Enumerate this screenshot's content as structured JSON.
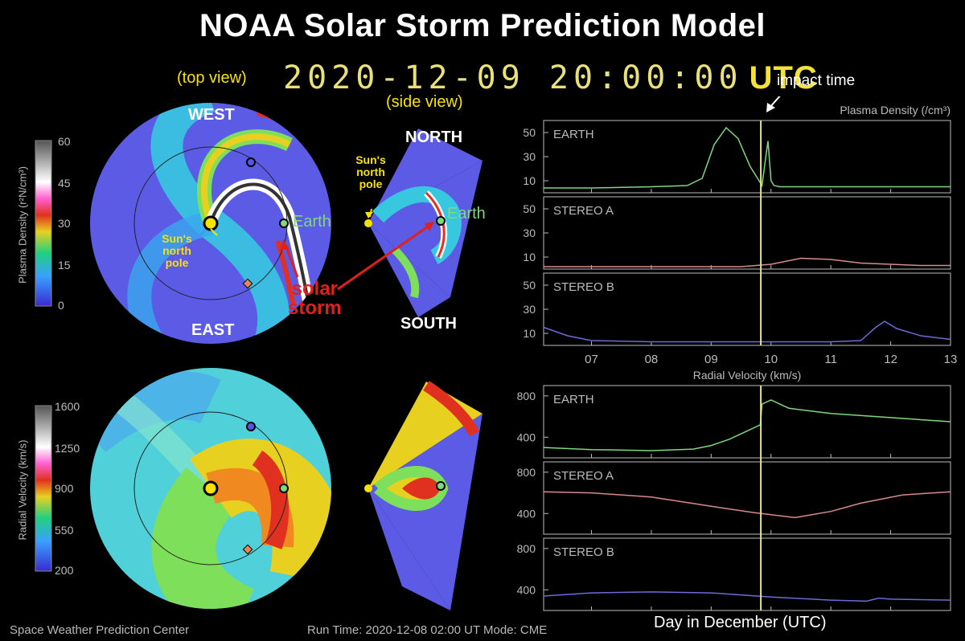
{
  "title": "NOAA Solar Storm Prediction Model",
  "datetime": "2020-12-09  20:00:00",
  "utc": "UTC",
  "labels": {
    "top_view": "(top view)",
    "side_view": "(side view)",
    "west": "WEST",
    "east": "EAST",
    "north": "NORTH",
    "south": "SOUTH",
    "earth": "Earth",
    "earth_side": "Earth",
    "sun_pole_1": "Sun's",
    "sun_pole_2": "north",
    "sun_pole_3": "pole",
    "solar_1": "solar",
    "solar_2": "storm",
    "impact_time": "impact time"
  },
  "colorbars": {
    "density": {
      "label": "Plasma Density (r²N/cm³)",
      "ticks": [
        "60",
        "45",
        "30",
        "15",
        "0"
      ]
    },
    "velocity": {
      "label": "Radial Velocity (km/s)",
      "ticks": [
        "1600",
        "1250",
        "900",
        "550",
        "200"
      ]
    }
  },
  "footer": {
    "left": "Space Weather Prediction Center",
    "run_time": "Run Time: 2020-12-08 02:00 UT   Mode: CME",
    "xaxis": "Day in December (UTC)"
  },
  "colors": {
    "earth": "#7fd77f",
    "stereo_a": "#d98a8a",
    "stereo_b": "#6b6bd9",
    "impact_line": "#e8e86a",
    "axis": "#bbbbbb"
  },
  "chart_data": [
    {
      "type": "line",
      "title": "Plasma Density (/cm³)",
      "xlabel": "Day in December (UTC)",
      "xlim": [
        6.2,
        13.0
      ],
      "x_ticks": [
        "07",
        "08",
        "09",
        "10",
        "11",
        "12",
        "13"
      ],
      "impact_time": 9.83,
      "panels": [
        {
          "name": "EARTH",
          "ylim": [
            0,
            60
          ],
          "y_ticks": [
            10,
            30,
            50
          ],
          "x": [
            6.2,
            7.0,
            8.0,
            8.6,
            8.85,
            9.05,
            9.25,
            9.45,
            9.65,
            9.85,
            9.9,
            9.95,
            10.0,
            10.05,
            10.15,
            10.5,
            11.0,
            12.0,
            13.0
          ],
          "values": [
            4,
            4,
            5,
            6,
            12,
            40,
            54,
            45,
            22,
            6,
            25,
            43,
            10,
            6,
            5,
            5,
            5,
            5,
            5
          ]
        },
        {
          "name": "STEREO A",
          "ylim": [
            0,
            60
          ],
          "y_ticks": [
            10,
            30,
            50
          ],
          "x": [
            6.2,
            8.0,
            9.5,
            10.0,
            10.5,
            11.0,
            11.5,
            12.5,
            13.0
          ],
          "values": [
            2,
            2,
            2,
            4,
            9,
            8,
            5,
            3,
            3
          ]
        },
        {
          "name": "STEREO B",
          "ylim": [
            0,
            60
          ],
          "y_ticks": [
            10,
            30,
            50
          ],
          "x": [
            6.2,
            6.6,
            7.0,
            8.0,
            9.0,
            10.0,
            11.0,
            11.5,
            11.75,
            11.9,
            12.1,
            12.5,
            13.0
          ],
          "values": [
            15,
            8,
            4,
            3,
            3,
            3,
            3,
            4,
            15,
            20,
            14,
            8,
            5
          ]
        }
      ]
    },
    {
      "type": "line",
      "title": "Radial Velocity (km/s)",
      "xlabel": "Day in December (UTC)",
      "xlim": [
        6.2,
        13.0
      ],
      "x_ticks": [
        "07",
        "08",
        "09",
        "10",
        "11",
        "12",
        "13"
      ],
      "impact_time": 9.83,
      "panels": [
        {
          "name": "EARTH",
          "ylim": [
            200,
            900
          ],
          "y_ticks": [
            400,
            800
          ],
          "x": [
            6.2,
            7.0,
            8.0,
            8.7,
            9.0,
            9.3,
            9.6,
            9.82,
            9.85,
            10.0,
            10.3,
            11.0,
            12.0,
            13.0
          ],
          "values": [
            300,
            280,
            270,
            285,
            320,
            380,
            460,
            520,
            720,
            760,
            680,
            630,
            590,
            550
          ]
        },
        {
          "name": "STEREO A",
          "ylim": [
            200,
            900
          ],
          "y_ticks": [
            400,
            800
          ],
          "x": [
            6.2,
            7.0,
            8.0,
            9.0,
            9.7,
            10.4,
            11.0,
            11.5,
            12.2,
            13.0
          ],
          "values": [
            610,
            600,
            560,
            470,
            410,
            360,
            420,
            500,
            580,
            610
          ]
        },
        {
          "name": "STEREO B",
          "ylim": [
            200,
            900
          ],
          "y_ticks": [
            400,
            800
          ],
          "x": [
            6.2,
            7.0,
            8.0,
            9.0,
            10.0,
            11.0,
            11.6,
            11.8,
            12.0,
            13.0
          ],
          "values": [
            340,
            370,
            380,
            370,
            330,
            300,
            290,
            320,
            310,
            300
          ]
        }
      ]
    }
  ]
}
